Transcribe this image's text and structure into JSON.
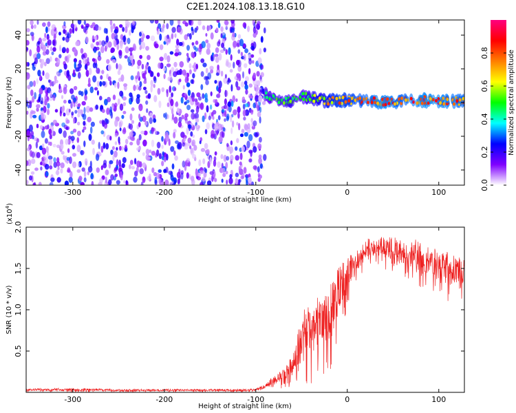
{
  "title": "C2E1.2024.108.13.18.G10",
  "chart_data": [
    {
      "type": "heatmap",
      "xlabel": "Height of straight line (km)",
      "ylabel": "Frequency (Hz)",
      "xlim": [
        -351,
        128
      ],
      "ylim": [
        -49,
        49
      ],
      "x_ticks": [
        -300,
        -200,
        -100,
        0,
        100
      ],
      "x_tick_labels": [
        "-300",
        "-200",
        "-100",
        "0",
        "100"
      ],
      "y_ticks": [
        -40,
        -20,
        0,
        20,
        40
      ],
      "y_tick_labels": [
        "-40",
        "-20",
        "0",
        "20",
        "40"
      ],
      "colorbar": {
        "label": "Normalized spectral amplitude",
        "range": [
          0,
          1
        ],
        "ticks": [
          0,
          0.2,
          0.4,
          0.6,
          0.8
        ],
        "tick_labels": [
          "0.0",
          "0.2",
          "0.4",
          "0.6",
          "0.8"
        ],
        "colors": [
          "#ffffff",
          "#7f00ff",
          "#0000ff",
          "#00ffff",
          "#00ff00",
          "#ffff00",
          "#ff7f00",
          "#ff0000",
          "#ff007f"
        ]
      },
      "description": "Broad noisy scatter (amplitude ~0.05-0.3) below -90 km; concentrated tone near 0-3 Hz (amplitude 0.5-1.0) above -90 km.",
      "noise_region": {
        "x_range": [
          -351,
          -90
        ],
        "amplitude_range": [
          0.03,
          0.3
        ]
      },
      "signal_trace": {
        "x": [
          -90,
          -80,
          -70,
          -60,
          -50,
          -40,
          -30,
          -20,
          -10,
          0,
          20,
          40,
          60,
          80,
          100,
          128
        ],
        "frequency": [
          5,
          2,
          1,
          1,
          4,
          3,
          2,
          1,
          1,
          1.5,
          1,
          0.5,
          1,
          1.5,
          1,
          1
        ],
        "amplitude": [
          0.45,
          0.5,
          0.55,
          0.55,
          0.5,
          0.6,
          0.65,
          0.75,
          0.8,
          0.8,
          0.85,
          0.9,
          0.85,
          0.9,
          0.9,
          0.85
        ]
      }
    },
    {
      "type": "line",
      "xlabel": "Height of straight line (km)",
      "ylabel": "SNR (10 * v/v)",
      "y_multiplier_label": "(x10",
      "y_multiplier_exponent": "4",
      "y_multiplier_close": ")",
      "xlim": [
        -351,
        128
      ],
      "ylim": [
        0,
        2.0
      ],
      "x_ticks": [
        -300,
        -200,
        -100,
        0,
        100
      ],
      "x_tick_labels": [
        "-300",
        "-200",
        "-100",
        "0",
        "100"
      ],
      "y_ticks": [
        0.5,
        1.0,
        1.5,
        2.0
      ],
      "y_tick_labels": [
        "0.5",
        "1.0",
        "1.5",
        "2.0"
      ],
      "series": [
        {
          "color": "#ee2222",
          "x": [
            -351,
            -300,
            -250,
            -200,
            -150,
            -110,
            -100,
            -90,
            -80,
            -70,
            -60,
            -55,
            -50,
            -45,
            -40,
            -30,
            -20,
            -10,
            0,
            10,
            20,
            30,
            40,
            50,
            60,
            70,
            80,
            90,
            100,
            110,
            120,
            128
          ],
          "y_lower": [
            0.0,
            0.0,
            0.0,
            0.0,
            0.0,
            0.0,
            0.01,
            0.02,
            0.03,
            0.05,
            0.05,
            0.06,
            0.08,
            0.1,
            0.1,
            0.15,
            0.2,
            0.6,
            1.0,
            1.3,
            1.45,
            1.5,
            1.45,
            1.4,
            1.35,
            1.3,
            1.25,
            1.2,
            1.2,
            1.1,
            1.1,
            1.1
          ],
          "y_upper": [
            0.05,
            0.05,
            0.04,
            0.04,
            0.04,
            0.04,
            0.05,
            0.1,
            0.2,
            0.3,
            0.45,
            0.7,
            0.95,
            1.1,
            1.0,
            1.2,
            1.3,
            1.5,
            1.65,
            1.7,
            1.85,
            1.9,
            1.9,
            1.9,
            1.88,
            1.85,
            1.85,
            1.75,
            1.75,
            1.7,
            1.65,
            1.6
          ]
        }
      ]
    }
  ]
}
